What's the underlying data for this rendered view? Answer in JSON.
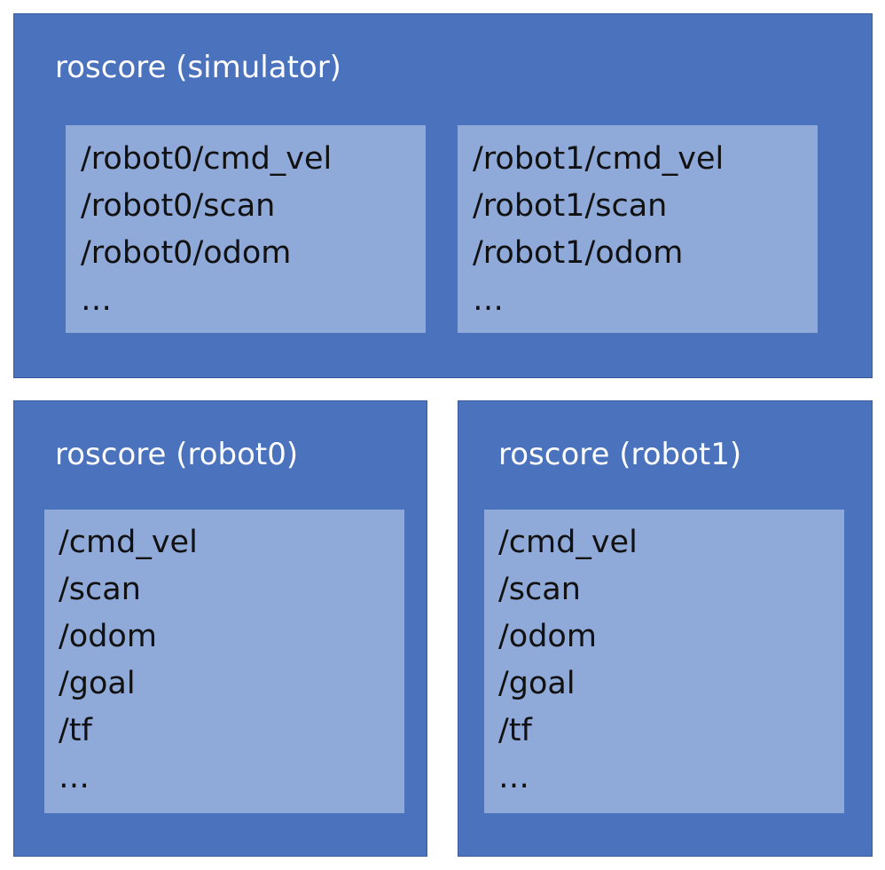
{
  "simulator": {
    "title": "roscore (simulator)",
    "robot0_topics": [
      "/robot0/cmd_vel",
      "/robot0/scan",
      "/robot0/odom",
      "…"
    ],
    "robot1_topics": [
      "/robot1/cmd_vel",
      "/robot1/scan",
      "/robot1/odom",
      "…"
    ]
  },
  "robot0": {
    "title": "roscore (robot0)",
    "topics": [
      "/cmd_vel",
      "/scan",
      "/odom",
      "/goal",
      "/tf",
      "…"
    ]
  },
  "robot1": {
    "title": "roscore (robot1)",
    "topics": [
      "/cmd_vel",
      "/scan",
      "/odom",
      "/goal",
      "/tf",
      "…"
    ]
  },
  "colors": {
    "outer_box": "#4a72bd",
    "inner_box": "#8fa9d9",
    "title_text": "#ffffff",
    "topic_text": "#111111"
  }
}
